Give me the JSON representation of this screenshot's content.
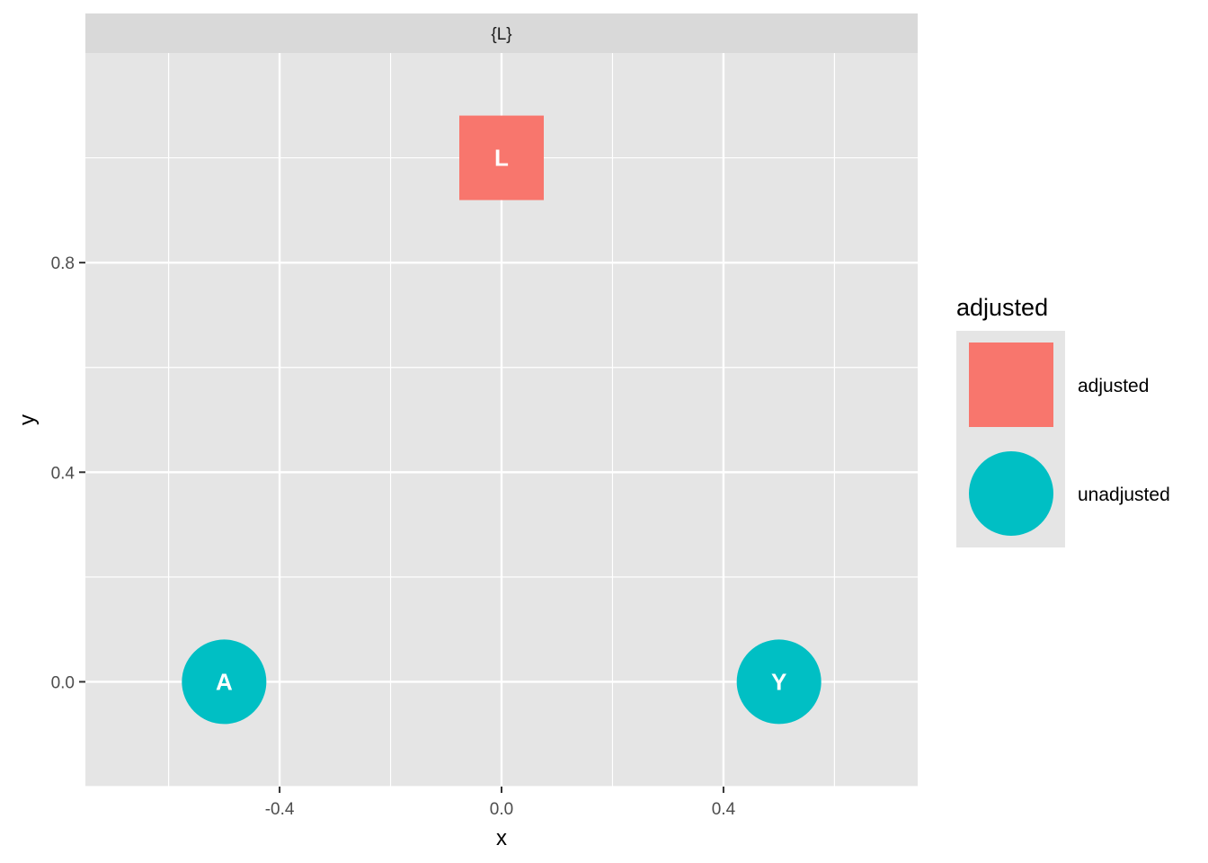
{
  "chart_data": {
    "type": "scatter",
    "facet_label": "{L}",
    "xlabel": "x",
    "ylabel": "y",
    "xlim": [
      -0.75,
      0.75
    ],
    "ylim": [
      -0.2,
      1.2
    ],
    "x_ticks": [
      -0.4,
      0.0,
      0.4
    ],
    "x_tick_labels": [
      "-0.4",
      "0.0",
      "0.4"
    ],
    "y_ticks": [
      0.0,
      0.4,
      0.8
    ],
    "y_tick_labels": [
      "0.0",
      "0.4",
      "0.8"
    ],
    "grid": true,
    "points": [
      {
        "label": "L",
        "x": 0.0,
        "y": 1.0,
        "group": "adjusted"
      },
      {
        "label": "A",
        "x": -0.5,
        "y": 0.0,
        "group": "unadjusted"
      },
      {
        "label": "Y",
        "x": 0.5,
        "y": 0.0,
        "group": "unadjusted"
      }
    ],
    "legend": {
      "title": "adjusted",
      "placement": "right",
      "entries": [
        {
          "label": "adjusted",
          "shape": "square",
          "color": "#F8766D"
        },
        {
          "label": "unadjusted",
          "shape": "circle",
          "color": "#00BFC4"
        }
      ]
    }
  }
}
